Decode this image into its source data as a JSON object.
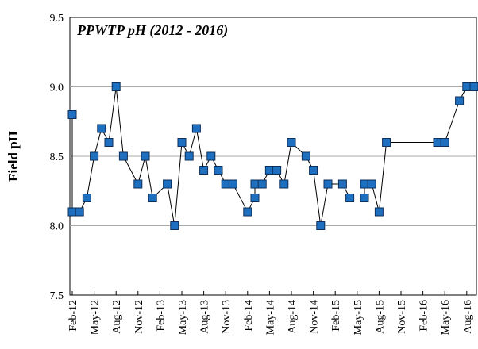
{
  "chart_data": {
    "type": "line",
    "title": "PPWTP pH (2012 - 2016)",
    "y_label": "Field pH",
    "x": [
      "2012-02",
      "2012-02",
      "2012-03",
      "2012-04",
      "2012-05",
      "2012-06",
      "2012-07",
      "2012-08",
      "2012-09",
      "2012-11",
      "2012-12",
      "2013-01",
      "2013-03",
      "2013-04",
      "2013-05",
      "2013-06",
      "2013-07",
      "2013-08",
      "2013-09",
      "2013-10",
      "2013-11",
      "2013-12",
      "2014-02",
      "2014-03",
      "2014-03",
      "2014-04",
      "2014-05",
      "2014-06",
      "2014-07",
      "2014-08",
      "2014-10",
      "2014-11",
      "2014-12",
      "2015-01",
      "2015-03",
      "2015-04",
      "2015-06",
      "2015-06",
      "2015-07",
      "2015-08",
      "2015-09",
      "2016-04",
      "2016-05",
      "2016-07",
      "2016-08",
      "2016-09"
    ],
    "series": [
      {
        "color": "#1f6fc0",
        "values": [
          8.8,
          8.1,
          8.1,
          8.2,
          8.5,
          8.7,
          8.6,
          9.0,
          8.5,
          8.3,
          8.5,
          8.2,
          8.3,
          8.0,
          8.6,
          8.5,
          8.7,
          8.4,
          8.5,
          8.4,
          8.3,
          8.3,
          8.1,
          8.2,
          8.3,
          8.3,
          8.4,
          8.4,
          8.3,
          8.6,
          8.5,
          8.4,
          8.0,
          8.3,
          8.3,
          8.2,
          8.2,
          8.3,
          8.3,
          8.1,
          8.6,
          8.6,
          8.6,
          8.9,
          9.0,
          9.0
        ]
      }
    ],
    "xlim": [
      "2012-02",
      "2016-09"
    ],
    "xticks": [
      {
        "value": "2012-02",
        "label": "Feb-12"
      },
      {
        "value": "2012-05",
        "label": "May-12"
      },
      {
        "value": "2012-08",
        "label": "Aug-12"
      },
      {
        "value": "2012-11",
        "label": "Nov-12"
      },
      {
        "value": "2013-02",
        "label": "Feb-13"
      },
      {
        "value": "2013-05",
        "label": "May-13"
      },
      {
        "value": "2013-08",
        "label": "Aug-13"
      },
      {
        "value": "2013-11",
        "label": "Nov-13"
      },
      {
        "value": "2014-02",
        "label": "Feb-14"
      },
      {
        "value": "2014-05",
        "label": "May-14"
      },
      {
        "value": "2014-08",
        "label": "Aug-14"
      },
      {
        "value": "2014-11",
        "label": "Nov-14"
      },
      {
        "value": "2015-02",
        "label": "Feb-15"
      },
      {
        "value": "2015-05",
        "label": "May-15"
      },
      {
        "value": "2015-08",
        "label": "Aug-15"
      },
      {
        "value": "2015-11",
        "label": "Nov-15"
      },
      {
        "value": "2016-02",
        "label": "Feb-16"
      },
      {
        "value": "2016-05",
        "label": "May-16"
      },
      {
        "value": "2016-08",
        "label": "Aug-16"
      }
    ],
    "ylim": [
      7.5,
      9.5
    ],
    "yticks": [
      7.5,
      {
        "value": 8,
        "label": "8.0"
      },
      8.5,
      {
        "value": 9,
        "label": "9.0"
      },
      9.5
    ],
    "grid": true
  }
}
